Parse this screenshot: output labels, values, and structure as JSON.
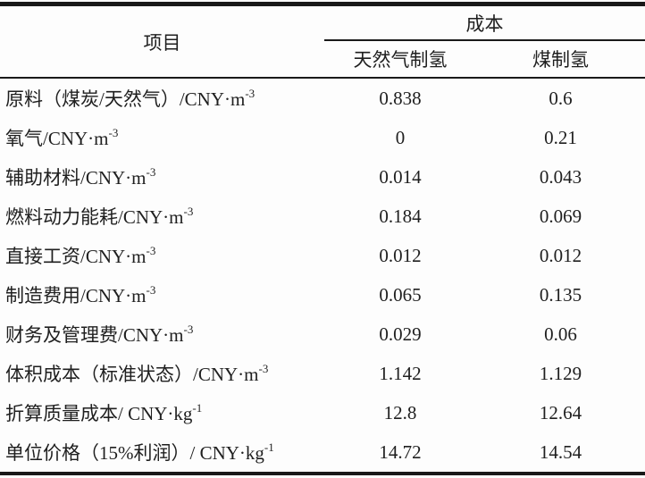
{
  "page": {
    "background_color": "#fdfdfd",
    "text_color": "#1f1f1f",
    "rule_color": "#191919"
  },
  "table": {
    "header": {
      "item_col": "项目",
      "cost_group": "成本",
      "sub_cols": [
        "天然气制氢",
        "煤制氢"
      ]
    },
    "rows": [
      {
        "label": "原料（煤炭/天然气）/CNY·m",
        "sup": "-3",
        "values": [
          "0.838",
          "0.6"
        ]
      },
      {
        "label": "氧气/CNY·m",
        "sup": "-3",
        "values": [
          "0",
          "0.21"
        ]
      },
      {
        "label": "辅助材料/CNY·m",
        "sup": "-3",
        "values": [
          "0.014",
          "0.043"
        ]
      },
      {
        "label": "燃料动力能耗/CNY·m",
        "sup": "-3",
        "values": [
          "0.184",
          "0.069"
        ]
      },
      {
        "label": "直接工资/CNY·m",
        "sup": "-3",
        "values": [
          "0.012",
          "0.012"
        ]
      },
      {
        "label": "制造费用/CNY·m",
        "sup": "-3",
        "values": [
          "0.065",
          "0.135"
        ]
      },
      {
        "label": "财务及管理费/CNY·m",
        "sup": "-3",
        "values": [
          "0.029",
          "0.06"
        ]
      },
      {
        "label": "体积成本（标准状态）/CNY·m",
        "sup": "-3",
        "values": [
          "1.142",
          "1.129"
        ]
      },
      {
        "label": "折算质量成本/ CNY·kg",
        "sup": "-1",
        "values": [
          "12.8",
          "12.64"
        ]
      },
      {
        "label": "单位价格（15%利润）/ CNY·kg",
        "sup": "-1",
        "values": [
          "14.72",
          "14.54"
        ]
      }
    ]
  },
  "chart_data": {
    "type": "table",
    "title": "",
    "columns": [
      "项目",
      "成本 天然气制氢",
      "成本 煤制氢"
    ],
    "rows": [
      [
        "原料（煤炭/天然气）/CNY·m⁻³",
        0.838,
        0.6
      ],
      [
        "氧气/CNY·m⁻³",
        0,
        0.21
      ],
      [
        "辅助材料/CNY·m⁻³",
        0.014,
        0.043
      ],
      [
        "燃料动力能耗/CNY·m⁻³",
        0.184,
        0.069
      ],
      [
        "直接工资/CNY·m⁻³",
        0.012,
        0.012
      ],
      [
        "制造费用/CNY·m⁻³",
        0.065,
        0.135
      ],
      [
        "财务及管理费/CNY·m⁻³",
        0.029,
        0.06
      ],
      [
        "体积成本（标准状态）/CNY·m⁻³",
        1.142,
        1.129
      ],
      [
        "折算质量成本/ CNY·kg⁻¹",
        12.8,
        12.64
      ],
      [
        "单位价格（15%利润）/ CNY·kg⁻¹",
        14.72,
        14.54
      ]
    ]
  }
}
